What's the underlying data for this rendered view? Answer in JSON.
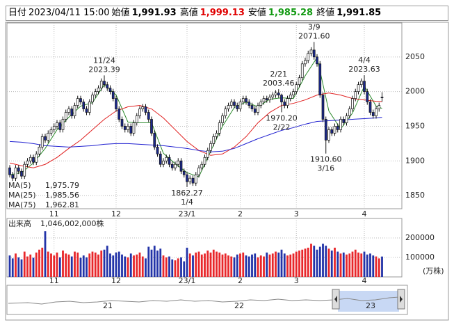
{
  "header": [
    {
      "label": "日付",
      "value": "2023/04/11 15:00"
    },
    {
      "label": "始値",
      "value": "1,991.93"
    },
    {
      "label": "高値",
      "value": "1,999.13"
    },
    {
      "label": "安値",
      "value": "1,985.28"
    },
    {
      "label": "終値",
      "value": "1,991.85"
    }
  ],
  "chart_data": {
    "type": "candlestick",
    "ylim": [
      1831,
      2099
    ],
    "yticks": [
      1850,
      1900,
      1950,
      2000,
      2050
    ],
    "grid": true,
    "xticks": [
      {
        "value": 15,
        "label": "11"
      },
      {
        "value": 36,
        "label": "12"
      },
      {
        "value": 60,
        "label": "23/1"
      },
      {
        "value": 78,
        "label": "2"
      },
      {
        "value": 97,
        "label": "3"
      },
      {
        "value": 120,
        "label": "4"
      }
    ],
    "up_color": "#ffffff",
    "down_color": "#1c2a8c",
    "ohlc": [
      [
        1890,
        1894,
        1876,
        1880
      ],
      [
        1880,
        1884,
        1871,
        1875
      ],
      [
        1875,
        1894,
        1871,
        1890
      ],
      [
        1890,
        1894,
        1881,
        1885
      ],
      [
        1885,
        1889,
        1874,
        1878
      ],
      [
        1878,
        1899,
        1874,
        1895
      ],
      [
        1895,
        1904,
        1891,
        1900
      ],
      [
        1900,
        1909,
        1896,
        1905
      ],
      [
        1905,
        1909,
        1894,
        1898
      ],
      [
        1898,
        1914,
        1894,
        1910
      ],
      [
        1910,
        1924,
        1906,
        1920
      ],
      [
        1920,
        1939,
        1916,
        1935
      ],
      [
        1935,
        1939,
        1926,
        1930
      ],
      [
        1930,
        1944,
        1926,
        1940
      ],
      [
        1940,
        1949,
        1936,
        1945
      ],
      [
        1945,
        1954,
        1941,
        1950
      ],
      [
        1950,
        1959,
        1946,
        1955
      ],
      [
        1955,
        1959,
        1941,
        1945
      ],
      [
        1945,
        1964,
        1941,
        1960
      ],
      [
        1960,
        1974,
        1956,
        1970
      ],
      [
        1970,
        1979,
        1966,
        1975
      ],
      [
        1975,
        1979,
        1961,
        1965
      ],
      [
        1965,
        1984,
        1961,
        1980
      ],
      [
        1980,
        1994,
        1976,
        1990
      ],
      [
        1990,
        1994,
        1981,
        1985
      ],
      [
        1985,
        1989,
        1971,
        1975
      ],
      [
        1975,
        1979,
        1966,
        1970
      ],
      [
        1970,
        1989,
        1966,
        1985
      ],
      [
        1985,
        1999,
        1981,
        1995
      ],
      [
        1995,
        2004,
        1991,
        2000
      ],
      [
        2000,
        2009,
        1996,
        2005
      ],
      [
        2005,
        2019,
        2001,
        2015
      ],
      [
        2015,
        2023.39,
        2006,
        2010
      ],
      [
        2010,
        2014,
        2001,
        2005
      ],
      [
        2005,
        2009,
        1996,
        2000
      ],
      [
        2000,
        2004,
        1986,
        1990
      ],
      [
        1990,
        1994,
        1971,
        1975
      ],
      [
        1975,
        1979,
        1956,
        1960
      ],
      [
        1960,
        1964,
        1946,
        1950
      ],
      [
        1950,
        1954,
        1941,
        1945
      ],
      [
        1945,
        1954,
        1941,
        1950
      ],
      [
        1950,
        1954,
        1936,
        1940
      ],
      [
        1940,
        1959,
        1936,
        1955
      ],
      [
        1955,
        1969,
        1951,
        1965
      ],
      [
        1965,
        1979,
        1961,
        1975
      ],
      [
        1975,
        1982,
        1971,
        1978
      ],
      [
        1978,
        1982,
        1966,
        1970
      ],
      [
        1970,
        1974,
        1956,
        1960
      ],
      [
        1960,
        1964,
        1936,
        1940
      ],
      [
        1940,
        1944,
        1916,
        1920
      ],
      [
        1920,
        1924,
        1906,
        1910
      ],
      [
        1910,
        1914,
        1891,
        1895
      ],
      [
        1895,
        1904,
        1891,
        1900
      ],
      [
        1900,
        1909,
        1896,
        1905
      ],
      [
        1905,
        1909,
        1891,
        1895
      ],
      [
        1895,
        1899,
        1886,
        1890
      ],
      [
        1890,
        1899,
        1886,
        1895
      ],
      [
        1895,
        1904,
        1891,
        1900
      ],
      [
        1900,
        1904,
        1881,
        1885
      ],
      [
        1885,
        1889,
        1876,
        1880
      ],
      [
        1880,
        1884,
        1862.27,
        1870
      ],
      [
        1870,
        1879,
        1866,
        1875
      ],
      [
        1875,
        1879,
        1864,
        1868
      ],
      [
        1868,
        1884,
        1864,
        1880
      ],
      [
        1880,
        1894,
        1876,
        1890
      ],
      [
        1890,
        1899,
        1886,
        1895
      ],
      [
        1895,
        1909,
        1891,
        1905
      ],
      [
        1905,
        1919,
        1901,
        1915
      ],
      [
        1915,
        1929,
        1911,
        1925
      ],
      [
        1925,
        1939,
        1921,
        1935
      ],
      [
        1935,
        1944,
        1931,
        1940
      ],
      [
        1940,
        1959,
        1936,
        1955
      ],
      [
        1955,
        1969,
        1951,
        1965
      ],
      [
        1965,
        1979,
        1961,
        1975
      ],
      [
        1975,
        1984,
        1971,
        1980
      ],
      [
        1980,
        1989,
        1976,
        1985
      ],
      [
        1985,
        1989,
        1976,
        1980
      ],
      [
        1980,
        1984,
        1971,
        1975
      ],
      [
        1975,
        1989,
        1971,
        1985
      ],
      [
        1985,
        1994,
        1981,
        1990
      ],
      [
        1990,
        1994,
        1981,
        1985
      ],
      [
        1985,
        1989,
        1976,
        1980
      ],
      [
        1980,
        1984,
        1971,
        1975
      ],
      [
        1975,
        1979,
        1966,
        1970
      ],
      [
        1970,
        1984,
        1966,
        1980
      ],
      [
        1980,
        1989,
        1976,
        1985
      ],
      [
        1985,
        1994,
        1981,
        1990
      ],
      [
        1990,
        1994,
        1984,
        1988
      ],
      [
        1988,
        1996,
        1984,
        1992
      ],
      [
        1992,
        1999,
        1988,
        1995
      ],
      [
        1995,
        2002,
        1991,
        1998
      ],
      [
        1998,
        2003.46,
        1991,
        1995
      ],
      [
        1995,
        1997,
        1970.2,
        1985
      ],
      [
        1985,
        1989,
        1976,
        1980
      ],
      [
        1980,
        1994,
        1976,
        1990
      ],
      [
        1990,
        1999,
        1986,
        1995
      ],
      [
        1995,
        2004,
        1991,
        2000
      ],
      [
        2000,
        2014,
        1996,
        2010
      ],
      [
        2010,
        2024,
        2006,
        2020
      ],
      [
        2020,
        2044,
        2016,
        2040
      ],
      [
        2040,
        2049,
        2036,
        2045
      ],
      [
        2045,
        2059,
        2041,
        2055
      ],
      [
        2055,
        2064,
        2051,
        2060
      ],
      [
        2060,
        2071.6,
        2046,
        2050
      ],
      [
        2050,
        2054,
        2036,
        2040
      ],
      [
        2040,
        2044,
        1991,
        1995
      ],
      [
        1995,
        1999,
        1956,
        1960
      ],
      [
        1960,
        1964,
        1910.6,
        1930
      ],
      [
        1930,
        1949,
        1926,
        1945
      ],
      [
        1945,
        1949,
        1936,
        1940
      ],
      [
        1940,
        1954,
        1936,
        1950
      ],
      [
        1950,
        1954,
        1941,
        1945
      ],
      [
        1945,
        1964,
        1941,
        1960
      ],
      [
        1960,
        1964,
        1951,
        1955
      ],
      [
        1955,
        1969,
        1951,
        1965
      ],
      [
        1965,
        1979,
        1961,
        1975
      ],
      [
        1975,
        1994,
        1971,
        1990
      ],
      [
        1990,
        2004,
        1986,
        2000
      ],
      [
        2000,
        2014,
        1996,
        2010
      ],
      [
        2010,
        2019,
        2006,
        2015
      ],
      [
        2015,
        2023.63,
        1996,
        2000
      ],
      [
        2000,
        2004,
        1981,
        1985
      ],
      [
        1985,
        1989,
        1966,
        1970
      ],
      [
        1970,
        1974,
        1961,
        1965
      ],
      [
        1965,
        1979,
        1961,
        1975
      ],
      [
        1975,
        1984,
        1971,
        1980
      ],
      [
        1991.93,
        1999.13,
        1985.28,
        1991.85
      ]
    ],
    "ma": {
      "x": [
        0,
        4,
        8,
        12,
        16,
        20,
        24,
        28,
        32,
        36,
        40,
        44,
        48,
        52,
        56,
        60,
        64,
        68,
        72,
        76,
        80,
        84,
        88,
        92,
        96,
        100,
        104,
        108,
        112,
        116,
        120,
        124,
        126
      ],
      "series": [
        {
          "name": "MA(5)",
          "color": "#2e8b2e",
          "legend_value": "1,975.79",
          "values": [
            1880,
            1883,
            1897,
            1918,
            1945,
            1963,
            1979,
            1984,
            2010,
            1995,
            1956,
            1955,
            1955,
            1911,
            1896,
            1883,
            1877,
            1914,
            1950,
            1977,
            1985,
            1978,
            1989,
            1991,
            1990,
            2023,
            2049,
            1972,
            1946,
            1969,
            2008,
            1979,
            1975.79
          ]
        },
        {
          "name": "MA(25)",
          "color": "#e02020",
          "legend_value": "1,985.56",
          "values": [
            1897,
            1893,
            1890,
            1895,
            1905,
            1918,
            1930,
            1945,
            1960,
            1972,
            1978,
            1980,
            1975,
            1962,
            1945,
            1928,
            1915,
            1908,
            1910,
            1920,
            1935,
            1955,
            1970,
            1980,
            1983,
            1988,
            1995,
            1998,
            1995,
            1990,
            1988,
            1986,
            1985.56
          ]
        },
        {
          "name": "MA(75)",
          "color": "#2020d0",
          "legend_value": "1,962.81",
          "values": [
            1928,
            1927,
            1925,
            1922,
            1921,
            1920,
            1921,
            1922,
            1924,
            1925,
            1925,
            1924,
            1923,
            1922,
            1920,
            1918,
            1915,
            1913,
            1914,
            1918,
            1925,
            1932,
            1938,
            1944,
            1948,
            1953,
            1957,
            1958,
            1959,
            1960,
            1961,
            1962,
            1962.81
          ]
        }
      ]
    },
    "annotations": [
      {
        "date": "11/24",
        "value": 2023.39,
        "label": "2023.39"
      },
      {
        "date": "1/4",
        "value": 1862.27,
        "label": "1862.27"
      },
      {
        "date": "2/21",
        "value": 2003.46,
        "label": "2003.46"
      },
      {
        "date": "2/22",
        "value": 1970.2,
        "label": "1970.20"
      },
      {
        "date": "3/9",
        "value": 2071.6,
        "label": "2071.60"
      },
      {
        "date": "3/16",
        "value": 1910.6,
        "label": "1910.60"
      },
      {
        "date": "4/4",
        "value": 2023.63,
        "label": "2023.63"
      }
    ],
    "volume": {
      "title": "出来高",
      "total": "1,046,002,000株",
      "unit": "(万株)",
      "ylim": [
        0,
        300000
      ],
      "yticks": [
        100000,
        200000
      ],
      "up_color": "#e8262a",
      "down_color": "#2233a8",
      "values": [
        110000,
        95000,
        120000,
        100000,
        90000,
        130000,
        105000,
        115000,
        98000,
        125000,
        140000,
        150000,
        235000,
        130000,
        120000,
        110000,
        125000,
        100000,
        135000,
        120000,
        115000,
        105000,
        130000,
        125000,
        98000,
        110000,
        100000,
        120000,
        130000,
        125000,
        115000,
        135000,
        140000,
        160000,
        120000,
        110000,
        125000,
        130000,
        115000,
        105000,
        100000,
        120000,
        110000,
        115000,
        125000,
        105000,
        95000,
        155000,
        140000,
        160000,
        135000,
        145000,
        110000,
        100000,
        105000,
        90000,
        85000,
        95000,
        100000,
        80000,
        150000,
        120000,
        110000,
        125000,
        130000,
        115000,
        120000,
        135000,
        125000,
        140000,
        130000,
        125000,
        115000,
        120000,
        110000,
        105000,
        100000,
        115000,
        120000,
        125000,
        110000,
        105000,
        115000,
        120000,
        100000,
        110000,
        105000,
        125000,
        115000,
        120000,
        130000,
        125000,
        140000,
        120000,
        110000,
        115000,
        120000,
        130000,
        135000,
        140000,
        145000,
        150000,
        170000,
        160000,
        140000,
        155000,
        170000,
        160000,
        145000,
        135000,
        150000,
        130000,
        120000,
        125000,
        115000,
        120000,
        130000,
        140000,
        125000,
        120000,
        130000,
        115000,
        120000,
        110000,
        105000,
        95000,
        104600.2
      ]
    }
  },
  "navigator": {
    "labels": [
      "21",
      "22",
      "23"
    ]
  }
}
